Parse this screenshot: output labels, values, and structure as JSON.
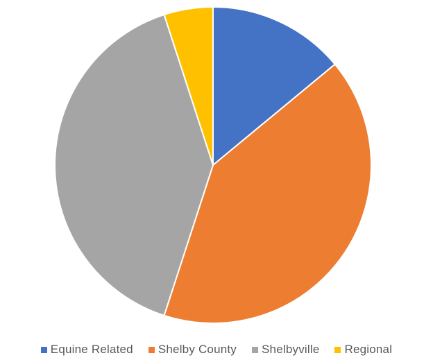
{
  "chart_data": {
    "type": "pie",
    "categories": [
      "Equine Related",
      "Shelby County",
      "Shelbyville",
      "Regional"
    ],
    "values": [
      14,
      41,
      40,
      5
    ],
    "colors": [
      "#4472C4",
      "#ED7D31",
      "#A5A5A5",
      "#FFC000"
    ],
    "legend_position": "bottom"
  }
}
